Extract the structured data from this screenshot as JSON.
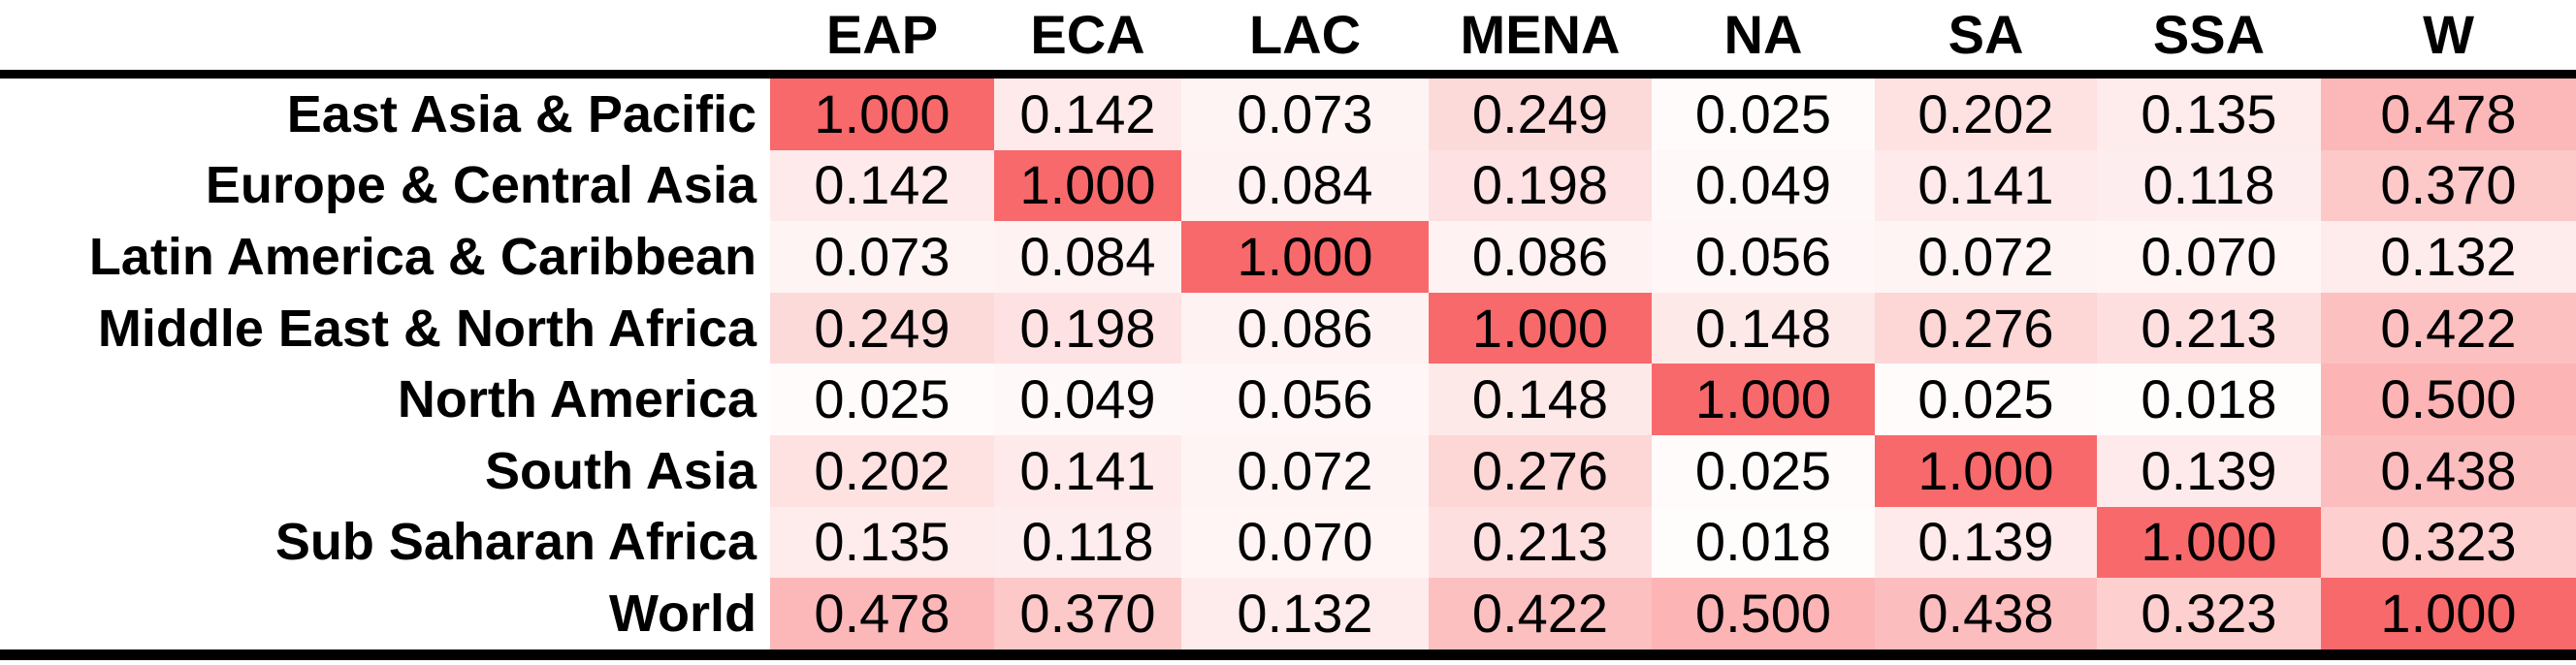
{
  "chart_data": {
    "type": "heatmap",
    "title": "",
    "columns": [
      "EAP",
      "ECA",
      "LAC",
      "MENA",
      "NA",
      "SA",
      "SSA",
      "W"
    ],
    "rows": [
      "East Asia & Pacific",
      "Europe & Central Asia",
      "Latin America & Caribbean",
      "Middle East & North Africa",
      "North America",
      "South Asia",
      "Sub Saharan Africa",
      "World"
    ],
    "values": [
      [
        1.0,
        0.142,
        0.073,
        0.249,
        0.025,
        0.202,
        0.135,
        0.478
      ],
      [
        0.142,
        1.0,
        0.084,
        0.198,
        0.049,
        0.141,
        0.118,
        0.37
      ],
      [
        0.073,
        0.084,
        1.0,
        0.086,
        0.056,
        0.072,
        0.07,
        0.132
      ],
      [
        0.249,
        0.198,
        0.086,
        1.0,
        0.148,
        0.276,
        0.213,
        0.422
      ],
      [
        0.025,
        0.049,
        0.056,
        0.148,
        1.0,
        0.025,
        0.018,
        0.5
      ],
      [
        0.202,
        0.141,
        0.072,
        0.276,
        0.025,
        1.0,
        0.139,
        0.438
      ],
      [
        0.135,
        0.118,
        0.07,
        0.213,
        0.018,
        0.139,
        1.0,
        0.323
      ],
      [
        0.478,
        0.37,
        0.132,
        0.422,
        0.5,
        0.438,
        0.323,
        1.0
      ]
    ],
    "cell_format": "0.000",
    "color_scale": {
      "min_value": 0,
      "max_value": 1,
      "min_color": "#FFFFFF",
      "max_color": "#F8696B"
    },
    "legend_position": "none",
    "grid": false
  },
  "style": {
    "rule_color": "#000000",
    "text_color": "#000000",
    "background_color": "#FFFFFF"
  }
}
